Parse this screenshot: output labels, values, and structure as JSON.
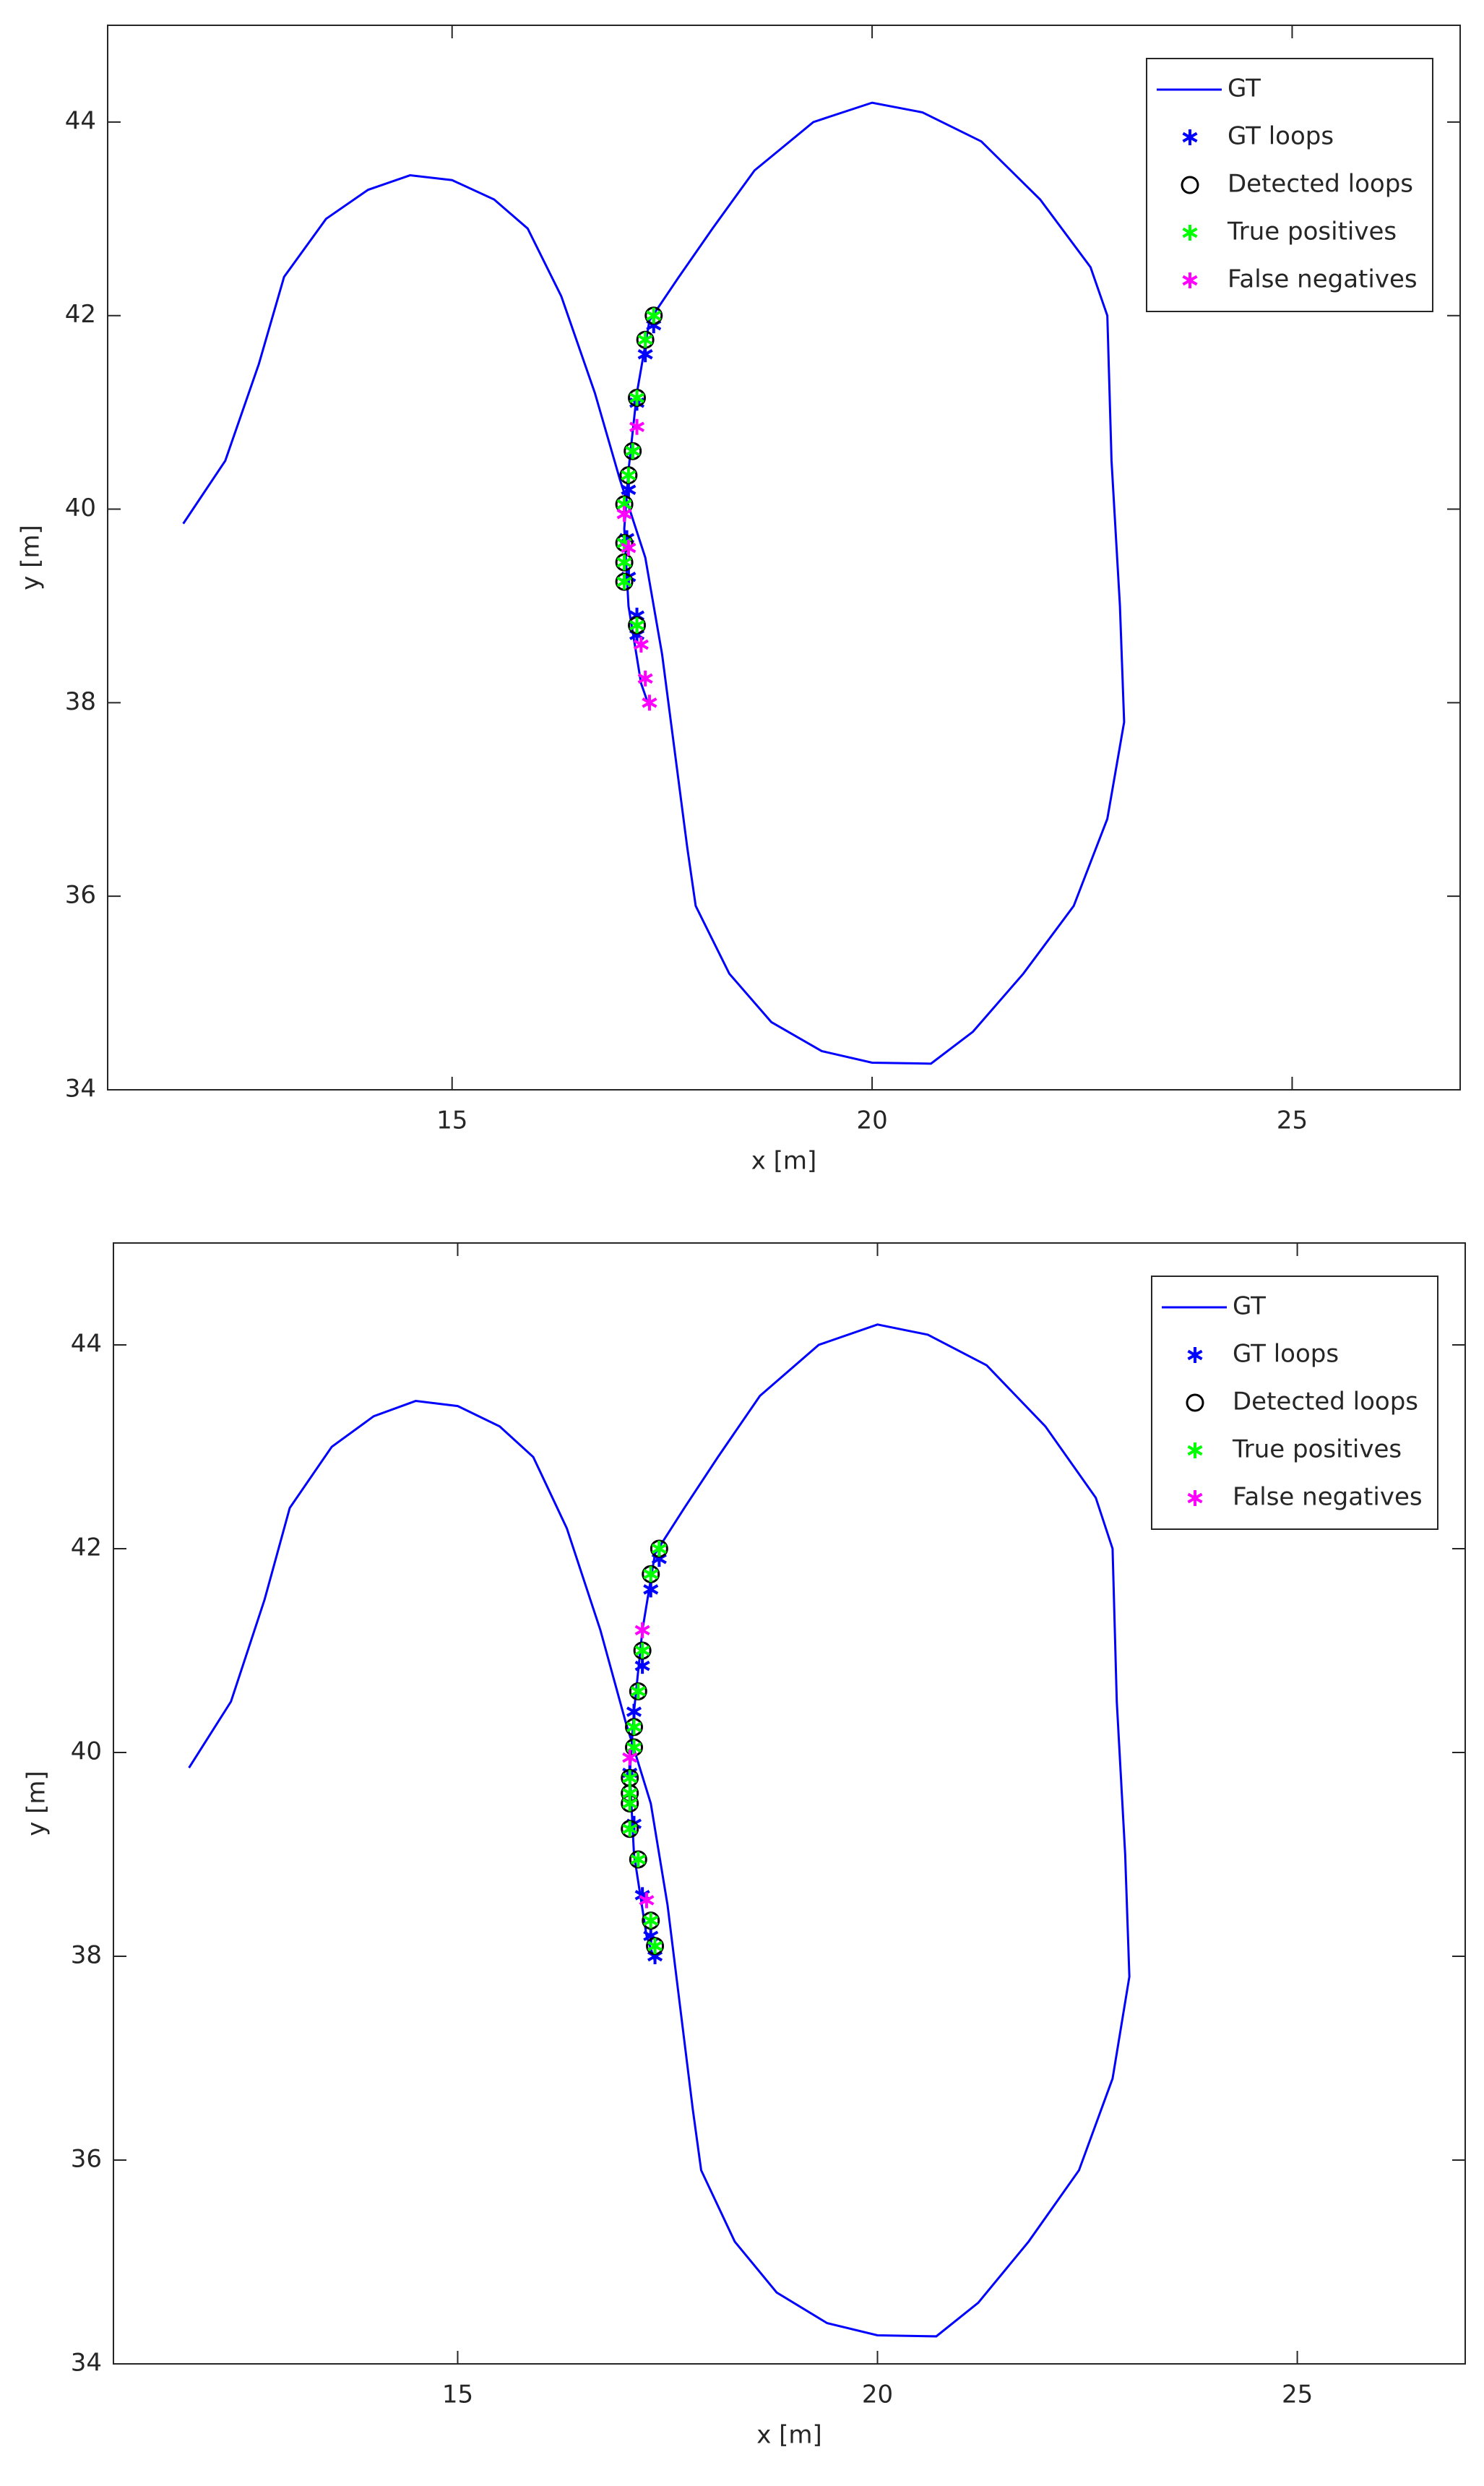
{
  "chart_data": [
    {
      "type": "line",
      "xlabel": "x [m]",
      "ylabel": "y [m]",
      "xlim": [
        10.9,
        27
      ],
      "ylim": [
        34,
        45
      ],
      "xticks": [
        15,
        20,
        25
      ],
      "yticks": [
        34,
        36,
        38,
        40,
        42,
        44
      ],
      "legend": "upper right",
      "grid": false,
      "series": [
        {
          "name": "GT",
          "color": "#0000ff",
          "marker": "line",
          "x": [
            11.8,
            12.3,
            12.7,
            13.0,
            13.5,
            14.0,
            14.5,
            15.0,
            15.5,
            15.9,
            16.3,
            16.7,
            17.0,
            17.3,
            17.5,
            17.65,
            17.8,
            17.9,
            18.3,
            18.8,
            19.4,
            20.0,
            20.7,
            21.2,
            21.8,
            22.4,
            22.8,
            23.0,
            22.95,
            22.85,
            22.8,
            22.6,
            22.0,
            21.3,
            20.6,
            20.0,
            19.3,
            18.6,
            18.1,
            17.7,
            17.35,
            17.2,
            17.1,
            17.05,
            17.1,
            17.25,
            17.35
          ],
          "y": [
            39.85,
            40.5,
            41.5,
            42.4,
            43.0,
            43.3,
            43.45,
            43.4,
            43.2,
            42.9,
            42.2,
            41.2,
            40.3,
            39.5,
            38.5,
            37.5,
            36.5,
            35.9,
            35.2,
            34.7,
            34.4,
            34.28,
            34.27,
            34.6,
            35.2,
            35.9,
            36.8,
            37.8,
            39.0,
            40.5,
            42.0,
            42.5,
            43.2,
            43.8,
            44.1,
            44.2,
            44.0,
            43.5,
            42.9,
            42.4,
            41.95,
            41.2,
            40.4,
            39.8,
            39.0,
            38.2,
            37.95
          ]
        },
        {
          "name": "GT loops",
          "color": "#0000ff",
          "marker": "star",
          "x": [
            17.4,
            17.3,
            17.2,
            17.15,
            17.1,
            17.08,
            17.1,
            17.2,
            17.2
          ],
          "y": [
            41.9,
            41.6,
            41.1,
            40.6,
            40.2,
            39.7,
            39.3,
            38.9,
            38.7
          ]
        },
        {
          "name": "Detected loops",
          "color": "#000000",
          "marker": "circle",
          "x": [
            17.4,
            17.3,
            17.2,
            17.15,
            17.1,
            17.05,
            17.05,
            17.05,
            17.05,
            17.2
          ],
          "y": [
            42.0,
            41.75,
            41.15,
            40.6,
            40.35,
            40.05,
            39.65,
            39.45,
            39.25,
            38.8
          ]
        },
        {
          "name": "True positives",
          "color": "#00ff00",
          "marker": "star",
          "x": [
            17.4,
            17.3,
            17.2,
            17.15,
            17.1,
            17.05,
            17.05,
            17.05,
            17.05,
            17.2
          ],
          "y": [
            42.0,
            41.75,
            41.15,
            40.6,
            40.35,
            40.05,
            39.65,
            39.45,
            39.25,
            38.8
          ]
        },
        {
          "name": "False negatives",
          "color": "#ff00ff",
          "marker": "star",
          "x": [
            17.2,
            17.05,
            17.1,
            17.25,
            17.3,
            17.35
          ],
          "y": [
            40.85,
            39.95,
            39.6,
            38.6,
            38.25,
            38.0
          ]
        }
      ]
    },
    {
      "type": "line",
      "xlabel": "x [m]",
      "ylabel": "y [m]",
      "xlim": [
        10.9,
        27
      ],
      "ylim": [
        34,
        45
      ],
      "xticks": [
        15,
        20,
        25
      ],
      "yticks": [
        34,
        36,
        38,
        40,
        42,
        44
      ],
      "legend": "upper right",
      "grid": false,
      "series": [
        {
          "name": "GT",
          "color": "#0000ff",
          "marker": "line",
          "x": [
            11.8,
            12.3,
            12.7,
            13.0,
            13.5,
            14.0,
            14.5,
            15.0,
            15.5,
            15.9,
            16.3,
            16.7,
            17.0,
            17.3,
            17.5,
            17.65,
            17.8,
            17.9,
            18.3,
            18.8,
            19.4,
            20.0,
            20.7,
            21.2,
            21.8,
            22.4,
            22.8,
            23.0,
            22.95,
            22.85,
            22.8,
            22.6,
            22.0,
            21.3,
            20.6,
            20.0,
            19.3,
            18.6,
            18.1,
            17.7,
            17.35,
            17.2,
            17.1,
            17.05,
            17.1,
            17.25,
            17.35
          ],
          "y": [
            39.85,
            40.5,
            41.5,
            42.4,
            43.0,
            43.3,
            43.45,
            43.4,
            43.2,
            42.9,
            42.2,
            41.2,
            40.3,
            39.5,
            38.5,
            37.5,
            36.5,
            35.9,
            35.2,
            34.7,
            34.4,
            34.28,
            34.27,
            34.6,
            35.2,
            35.9,
            36.8,
            37.8,
            39.0,
            40.5,
            42.0,
            42.5,
            43.2,
            43.8,
            44.1,
            44.2,
            44.0,
            43.5,
            42.9,
            42.4,
            41.95,
            41.2,
            40.4,
            39.8,
            39.0,
            38.2,
            37.95
          ]
        },
        {
          "name": "GT loops",
          "color": "#0000ff",
          "marker": "star",
          "x": [
            17.4,
            17.3,
            17.2,
            17.1,
            17.05,
            17.1,
            17.2,
            17.3,
            17.35
          ],
          "y": [
            41.9,
            41.6,
            40.85,
            40.4,
            39.8,
            39.3,
            38.6,
            38.2,
            38.0
          ]
        },
        {
          "name": "Detected loops",
          "color": "#000000",
          "marker": "circle",
          "x": [
            17.4,
            17.3,
            17.2,
            17.15,
            17.1,
            17.1,
            17.05,
            17.05,
            17.05,
            17.05,
            17.15,
            17.3,
            17.35
          ],
          "y": [
            42.0,
            41.75,
            41.0,
            40.6,
            40.25,
            40.05,
            39.75,
            39.6,
            39.5,
            39.25,
            38.95,
            38.35,
            38.1
          ]
        },
        {
          "name": "True positives",
          "color": "#00ff00",
          "marker": "star",
          "x": [
            17.4,
            17.3,
            17.2,
            17.15,
            17.1,
            17.1,
            17.05,
            17.05,
            17.05,
            17.05,
            17.15,
            17.3,
            17.35
          ],
          "y": [
            42.0,
            41.75,
            41.0,
            40.6,
            40.25,
            40.05,
            39.75,
            39.6,
            39.5,
            39.25,
            38.95,
            38.35,
            38.1
          ]
        },
        {
          "name": "False negatives",
          "color": "#ff00ff",
          "marker": "star",
          "x": [
            17.2,
            17.05,
            17.25
          ],
          "y": [
            41.2,
            39.95,
            38.55
          ]
        }
      ]
    }
  ]
}
